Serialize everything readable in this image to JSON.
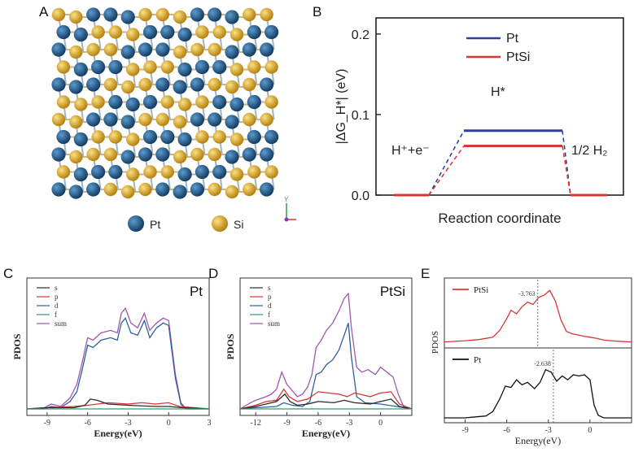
{
  "panels": {
    "a": {
      "label": "A",
      "legend": [
        {
          "name": "Pt",
          "color": "#2a6a9a"
        },
        {
          "name": "Si",
          "color": "#e8b731"
        }
      ],
      "axis_glyph": "Y"
    },
    "b": {
      "label": "B"
    },
    "c": {
      "label": "C"
    },
    "d": {
      "label": "D"
    },
    "e": {
      "label": "E"
    }
  },
  "chart_data": [
    {
      "id": "B",
      "type": "line",
      "title": "",
      "xlabel": "Reaction coordinate",
      "ylabel": "|ΔG_H*| (eV)",
      "ylim": [
        0,
        0.22
      ],
      "yticks": [
        "0.0",
        "0.1",
        "0.2"
      ],
      "states": [
        "H⁺+e⁻",
        "H*",
        "1/2 H₂"
      ],
      "series": [
        {
          "name": "Pt",
          "color": "#2f3fa6",
          "values": [
            0,
            0.08,
            0
          ]
        },
        {
          "name": "PtSi",
          "color": "#d93636",
          "values": [
            0,
            0.061,
            0
          ]
        }
      ],
      "legend": "top-right"
    },
    {
      "id": "C",
      "type": "line",
      "title": "Pt",
      "xlabel": "Energy(eV)",
      "ylabel": "PDOS",
      "xlim": [
        -10.5,
        3
      ],
      "xticks": [
        -9,
        -6,
        -3,
        0,
        3
      ],
      "series": [
        {
          "name": "s",
          "color": "#2a2a2a",
          "points": [
            [
              -10.5,
              0
            ],
            [
              -9,
              0.01
            ],
            [
              -7,
              0.01
            ],
            [
              -6.2,
              0.03
            ],
            [
              -5.8,
              0.08
            ],
            [
              -5.3,
              0.07
            ],
            [
              -4.5,
              0.04
            ],
            [
              -3,
              0.03
            ],
            [
              -1,
              0.02
            ],
            [
              0,
              0.02
            ],
            [
              1,
              0.01
            ],
            [
              3,
              0
            ]
          ]
        },
        {
          "name": "p",
          "color": "#d93636",
          "points": [
            [
              -10.5,
              0
            ],
            [
              -9,
              0.01
            ],
            [
              -7,
              0.02
            ],
            [
              -6,
              0.03
            ],
            [
              -4.5,
              0.05
            ],
            [
              -3,
              0.04
            ],
            [
              -2,
              0.05
            ],
            [
              -1,
              0.04
            ],
            [
              0,
              0.05
            ],
            [
              0.8,
              0.02
            ],
            [
              3,
              0
            ]
          ]
        },
        {
          "name": "d",
          "color": "#2f5fa0",
          "points": [
            [
              -10.5,
              0
            ],
            [
              -9.2,
              0
            ],
            [
              -8.7,
              0.02
            ],
            [
              -8,
              0.01
            ],
            [
              -7.3,
              0.06
            ],
            [
              -6.8,
              0.14
            ],
            [
              -6.4,
              0.32
            ],
            [
              -6,
              0.52
            ],
            [
              -5.6,
              0.5
            ],
            [
              -5,
              0.56
            ],
            [
              -4.3,
              0.58
            ],
            [
              -3.8,
              0.56
            ],
            [
              -3.5,
              0.7
            ],
            [
              -3.2,
              0.74
            ],
            [
              -2.8,
              0.62
            ],
            [
              -2.3,
              0.6
            ],
            [
              -1.8,
              0.72
            ],
            [
              -1.4,
              0.58
            ],
            [
              -0.9,
              0.66
            ],
            [
              -0.4,
              0.7
            ],
            [
              0,
              0.68
            ],
            [
              0.5,
              0.25
            ],
            [
              0.9,
              0.04
            ],
            [
              1.3,
              0
            ],
            [
              3,
              0
            ]
          ]
        },
        {
          "name": "f",
          "color": "#2aa06e",
          "points": [
            [
              -10.5,
              0
            ],
            [
              3,
              0
            ]
          ]
        },
        {
          "name": "sum",
          "color": "#a057b0",
          "points": [
            [
              -10.5,
              0
            ],
            [
              -9.2,
              0.01
            ],
            [
              -8.7,
              0.04
            ],
            [
              -8,
              0.02
            ],
            [
              -7.3,
              0.09
            ],
            [
              -6.8,
              0.2
            ],
            [
              -6.4,
              0.38
            ],
            [
              -6,
              0.58
            ],
            [
              -5.6,
              0.56
            ],
            [
              -5,
              0.62
            ],
            [
              -4.3,
              0.64
            ],
            [
              -3.8,
              0.62
            ],
            [
              -3.5,
              0.78
            ],
            [
              -3.2,
              0.82
            ],
            [
              -2.8,
              0.7
            ],
            [
              -2.3,
              0.66
            ],
            [
              -1.8,
              0.78
            ],
            [
              -1.4,
              0.64
            ],
            [
              -0.9,
              0.7
            ],
            [
              -0.4,
              0.74
            ],
            [
              0,
              0.72
            ],
            [
              0.5,
              0.28
            ],
            [
              0.9,
              0.05
            ],
            [
              1.3,
              0
            ],
            [
              3,
              0
            ]
          ]
        }
      ],
      "legend": "top-left"
    },
    {
      "id": "D",
      "type": "line",
      "title": "PtSi",
      "xlabel": "Energy(eV)",
      "ylabel": "PDOS",
      "xlim": [
        -13.5,
        3
      ],
      "xticks": [
        -12,
        -9,
        -6,
        -3,
        0
      ],
      "series": [
        {
          "name": "s",
          "color": "#2a2a2a",
          "points": [
            [
              -13.5,
              0
            ],
            [
              -12,
              0.02
            ],
            [
              -11,
              0.04
            ],
            [
              -10,
              0.06
            ],
            [
              -9.2,
              0.12
            ],
            [
              -8.7,
              0.06
            ],
            [
              -8,
              0.03
            ],
            [
              -7,
              0.04
            ],
            [
              -6,
              0.06
            ],
            [
              -4.5,
              0.05
            ],
            [
              -3.5,
              0.07
            ],
            [
              -2.5,
              0.05
            ],
            [
              -1,
              0.04
            ],
            [
              0,
              0.06
            ],
            [
              1,
              0.08
            ],
            [
              1.8,
              0.02
            ],
            [
              3,
              0
            ]
          ]
        },
        {
          "name": "p",
          "color": "#d93636",
          "points": [
            [
              -13.5,
              0
            ],
            [
              -12,
              0.03
            ],
            [
              -11,
              0.06
            ],
            [
              -10,
              0.07
            ],
            [
              -9.3,
              0.16
            ],
            [
              -8.8,
              0.1
            ],
            [
              -8,
              0.06
            ],
            [
              -7,
              0.08
            ],
            [
              -6,
              0.14
            ],
            [
              -5,
              0.13
            ],
            [
              -4,
              0.12
            ],
            [
              -3.2,
              0.1
            ],
            [
              -2.5,
              0.13
            ],
            [
              -2,
              0.12
            ],
            [
              -1,
              0.1
            ],
            [
              0,
              0.13
            ],
            [
              1,
              0.14
            ],
            [
              1.8,
              0.04
            ],
            [
              3,
              0
            ]
          ]
        },
        {
          "name": "d",
          "color": "#2f5fa0",
          "points": [
            [
              -13.5,
              0
            ],
            [
              -12,
              0.01
            ],
            [
              -10,
              0.02
            ],
            [
              -9.3,
              0.05
            ],
            [
              -8.5,
              0.03
            ],
            [
              -7.5,
              0.02
            ],
            [
              -6.8,
              0.06
            ],
            [
              -6.2,
              0.28
            ],
            [
              -5.7,
              0.3
            ],
            [
              -5.2,
              0.36
            ],
            [
              -4.6,
              0.4
            ],
            [
              -4,
              0.48
            ],
            [
              -3.5,
              0.6
            ],
            [
              -3.1,
              0.7
            ],
            [
              -2.8,
              0.42
            ],
            [
              -2.3,
              0.1
            ],
            [
              -1.5,
              0.05
            ],
            [
              0,
              0.04
            ],
            [
              1.5,
              0.02
            ],
            [
              3,
              0
            ]
          ]
        },
        {
          "name": "f",
          "color": "#2aa06e",
          "points": [
            [
              -13.5,
              0
            ],
            [
              3,
              0
            ]
          ]
        },
        {
          "name": "sum",
          "color": "#a057b0",
          "points": [
            [
              -13.5,
              0
            ],
            [
              -12.5,
              0.05
            ],
            [
              -12,
              0.07
            ],
            [
              -11,
              0.1
            ],
            [
              -10.5,
              0.12
            ],
            [
              -10,
              0.16
            ],
            [
              -9.5,
              0.3
            ],
            [
              -9,
              0.2
            ],
            [
              -8.5,
              0.15
            ],
            [
              -8,
              0.1
            ],
            [
              -7.5,
              0.12
            ],
            [
              -7,
              0.18
            ],
            [
              -6.6,
              0.28
            ],
            [
              -6.2,
              0.5
            ],
            [
              -5.7,
              0.56
            ],
            [
              -5.2,
              0.64
            ],
            [
              -4.6,
              0.7
            ],
            [
              -4,
              0.8
            ],
            [
              -3.5,
              0.9
            ],
            [
              -3.1,
              0.94
            ],
            [
              -2.8,
              0.66
            ],
            [
              -2.3,
              0.34
            ],
            [
              -1.8,
              0.3
            ],
            [
              -1.2,
              0.32
            ],
            [
              -0.5,
              0.28
            ],
            [
              0,
              0.34
            ],
            [
              0.6,
              0.3
            ],
            [
              1.2,
              0.26
            ],
            [
              1.7,
              0.12
            ],
            [
              2.2,
              0.02
            ],
            [
              3,
              0
            ]
          ]
        }
      ],
      "legend": "top-left"
    },
    {
      "id": "E",
      "type": "line",
      "xlabel": "Energy(eV)",
      "ylabel": "PDOS",
      "xlim": [
        -10.5,
        3
      ],
      "xticks": [
        -9,
        -6,
        -3,
        0
      ],
      "subplots": [
        {
          "name": "PtSi",
          "color": "#d93636",
          "d_band_center": -3.763,
          "annotation": "-3.763",
          "points": [
            [
              -10.5,
              0.02
            ],
            [
              -9,
              0.04
            ],
            [
              -8,
              0.06
            ],
            [
              -7,
              0.1
            ],
            [
              -6.5,
              0.22
            ],
            [
              -6,
              0.42
            ],
            [
              -5.7,
              0.56
            ],
            [
              -5.3,
              0.5
            ],
            [
              -4.9,
              0.62
            ],
            [
              -4.5,
              0.7
            ],
            [
              -4.1,
              0.66
            ],
            [
              -3.7,
              0.78
            ],
            [
              -3.3,
              0.82
            ],
            [
              -2.9,
              0.9
            ],
            [
              -2.5,
              0.72
            ],
            [
              -2.1,
              0.4
            ],
            [
              -1.7,
              0.2
            ],
            [
              -1.3,
              0.16
            ],
            [
              -0.9,
              0.14
            ],
            [
              -0.5,
              0.12
            ],
            [
              0,
              0.1
            ],
            [
              0.5,
              0.08
            ],
            [
              1,
              0.05
            ],
            [
              2,
              0.03
            ],
            [
              3,
              0.02
            ]
          ]
        },
        {
          "name": "Pt",
          "color": "#111111",
          "d_band_center": -2.638,
          "annotation": "-2.638",
          "points": [
            [
              -10.5,
              0
            ],
            [
              -9,
              0
            ],
            [
              -8.5,
              0.01
            ],
            [
              -7.5,
              0.03
            ],
            [
              -7,
              0.1
            ],
            [
              -6.5,
              0.3
            ],
            [
              -6.1,
              0.5
            ],
            [
              -5.7,
              0.48
            ],
            [
              -5.3,
              0.6
            ],
            [
              -4.9,
              0.52
            ],
            [
              -4.5,
              0.56
            ],
            [
              -4,
              0.46
            ],
            [
              -3.6,
              0.56
            ],
            [
              -3.2,
              0.76
            ],
            [
              -2.8,
              0.72
            ],
            [
              -2.4,
              0.58
            ],
            [
              -2,
              0.66
            ],
            [
              -1.6,
              0.6
            ],
            [
              -1.2,
              0.68
            ],
            [
              -0.8,
              0.66
            ],
            [
              -0.4,
              0.68
            ],
            [
              0,
              0.6
            ],
            [
              0.3,
              0.2
            ],
            [
              0.6,
              0.04
            ],
            [
              1,
              0
            ],
            [
              3,
              0
            ]
          ]
        }
      ]
    }
  ]
}
